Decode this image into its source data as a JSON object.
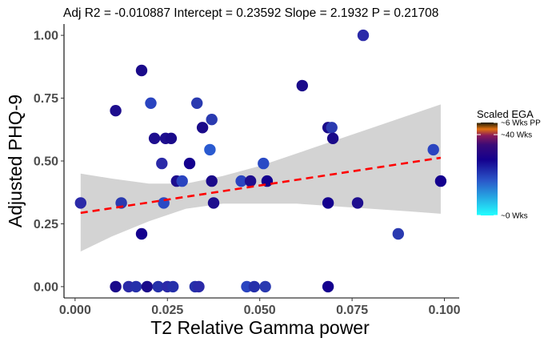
{
  "chart_data": {
    "type": "scatter",
    "title": "Adj R2 =  -0.010887 Intercept = 0.23592  Slope = 2.1932  P = 0.21708",
    "xlabel": "T2 Relative Gamma power",
    "ylabel": "Adjusted PHQ-9",
    "xlim": [
      -0.003,
      0.104
    ],
    "ylim": [
      -0.045,
      1.045
    ],
    "x_ticks": [
      0.0,
      0.025,
      0.05,
      0.075,
      0.1
    ],
    "x_tick_labels": [
      "0.000",
      "0.025",
      "0.050",
      "0.075",
      "0.100"
    ],
    "y_ticks": [
      0.0,
      0.25,
      0.5,
      0.75,
      1.0
    ],
    "y_tick_labels": [
      "0.00",
      "0.25",
      "0.50",
      "0.75",
      "1.00"
    ],
    "grid": false,
    "legend": {
      "title": "Scaled EGA",
      "position": "right",
      "labels": [
        "~6 Wks PP",
        "~40 Wks",
        "~0 Wks"
      ],
      "label_values": [
        1.0,
        0.87,
        0.0
      ],
      "gradient": [
        {
          "offset": 0.0,
          "color": "#1a1a00"
        },
        {
          "offset": 0.07,
          "color": "#e07010"
        },
        {
          "offset": 0.14,
          "color": "#8b1a5a"
        },
        {
          "offset": 0.24,
          "color": "#3a0a78"
        },
        {
          "offset": 0.4,
          "color": "#14008e"
        },
        {
          "offset": 0.62,
          "color": "#2a55c8"
        },
        {
          "offset": 1.0,
          "color": "#22ffff"
        }
      ]
    },
    "regression": {
      "intercept": 0.29,
      "slope": 2.25,
      "x_range": [
        0.0015,
        0.099
      ],
      "line_color": "#ff0000",
      "ci_band": [
        {
          "x": 0.0015,
          "lower": 0.14,
          "upper": 0.45
        },
        {
          "x": 0.01,
          "lower": 0.2,
          "upper": 0.43
        },
        {
          "x": 0.02,
          "lower": 0.26,
          "upper": 0.41
        },
        {
          "x": 0.03,
          "lower": 0.31,
          "upper": 0.41
        },
        {
          "x": 0.04,
          "lower": 0.33,
          "upper": 0.44
        },
        {
          "x": 0.05,
          "lower": 0.33,
          "upper": 0.48
        },
        {
          "x": 0.06,
          "lower": 0.33,
          "upper": 0.53
        },
        {
          "x": 0.07,
          "lower": 0.32,
          "upper": 0.58
        },
        {
          "x": 0.08,
          "lower": 0.31,
          "upper": 0.63
        },
        {
          "x": 0.09,
          "lower": 0.3,
          "upper": 0.68
        },
        {
          "x": 0.099,
          "lower": 0.29,
          "upper": 0.725
        }
      ]
    },
    "points": [
      {
        "x": 0.0015,
        "y": 0.333,
        "color": "#2b2aa8"
      },
      {
        "x": 0.011,
        "y": 0.0,
        "color": "#1a0a8a"
      },
      {
        "x": 0.011,
        "y": 0.7,
        "color": "#1e0e8e"
      },
      {
        "x": 0.0125,
        "y": 0.333,
        "color": "#2a3ab0"
      },
      {
        "x": 0.0145,
        "y": 0.0,
        "color": "#2b2aa8"
      },
      {
        "x": 0.0165,
        "y": 0.0,
        "color": "#2530aa"
      },
      {
        "x": 0.018,
        "y": 0.86,
        "color": "#1a0a8a"
      },
      {
        "x": 0.018,
        "y": 0.21,
        "color": "#14008e"
      },
      {
        "x": 0.0195,
        "y": 0.0,
        "color": "#1a0a8a"
      },
      {
        "x": 0.0205,
        "y": 0.73,
        "color": "#2a44c0"
      },
      {
        "x": 0.0215,
        "y": 0.59,
        "color": "#1e0e8e"
      },
      {
        "x": 0.0225,
        "y": 0.0,
        "color": "#2530aa"
      },
      {
        "x": 0.0235,
        "y": 0.49,
        "color": "#2b2aa8"
      },
      {
        "x": 0.024,
        "y": 0.333,
        "color": "#2a4ac5"
      },
      {
        "x": 0.0245,
        "y": 0.59,
        "color": "#1e0e8e"
      },
      {
        "x": 0.025,
        "y": 0.0,
        "color": "#2b2aa8"
      },
      {
        "x": 0.026,
        "y": 0.59,
        "color": "#1a0a8a"
      },
      {
        "x": 0.0265,
        "y": 0.0,
        "color": "#2530aa"
      },
      {
        "x": 0.0275,
        "y": 0.42,
        "color": "#1e0e8e"
      },
      {
        "x": 0.029,
        "y": 0.42,
        "color": "#2a44c0"
      },
      {
        "x": 0.031,
        "y": 0.49,
        "color": "#14008e"
      },
      {
        "x": 0.0325,
        "y": 0.0,
        "color": "#2530aa"
      },
      {
        "x": 0.033,
        "y": 0.73,
        "color": "#2a3ab0"
      },
      {
        "x": 0.0335,
        "y": 0.0,
        "color": "#2b2aa8"
      },
      {
        "x": 0.0345,
        "y": 0.633,
        "color": "#1a0a8a"
      },
      {
        "x": 0.0365,
        "y": 0.545,
        "color": "#2a5ad0"
      },
      {
        "x": 0.037,
        "y": 0.665,
        "color": "#2a3ab0"
      },
      {
        "x": 0.037,
        "y": 0.42,
        "color": "#1a0a8a"
      },
      {
        "x": 0.0375,
        "y": 0.333,
        "color": "#1e0e8e"
      },
      {
        "x": 0.045,
        "y": 0.42,
        "color": "#2a44c0"
      },
      {
        "x": 0.0465,
        "y": 0.0,
        "color": "#2a44c0"
      },
      {
        "x": 0.0475,
        "y": 0.42,
        "color": "#1e0e8e"
      },
      {
        "x": 0.0485,
        "y": 0.0,
        "color": "#2530aa"
      },
      {
        "x": 0.051,
        "y": 0.49,
        "color": "#2a4ac5"
      },
      {
        "x": 0.0515,
        "y": 0.0,
        "color": "#2a3ab0"
      },
      {
        "x": 0.052,
        "y": 0.42,
        "color": "#14008e"
      },
      {
        "x": 0.0615,
        "y": 0.8,
        "color": "#1a0a8a"
      },
      {
        "x": 0.0685,
        "y": 0.633,
        "color": "#1a0a8a"
      },
      {
        "x": 0.0685,
        "y": 0.333,
        "color": "#14008e"
      },
      {
        "x": 0.0685,
        "y": 0.0,
        "color": "#14008e"
      },
      {
        "x": 0.0695,
        "y": 0.633,
        "color": "#2a3ab0"
      },
      {
        "x": 0.0698,
        "y": 0.59,
        "color": "#1a0a8a"
      },
      {
        "x": 0.0765,
        "y": 0.333,
        "color": "#1e0e8e"
      },
      {
        "x": 0.078,
        "y": 1.0,
        "color": "#2b2aa8"
      },
      {
        "x": 0.0875,
        "y": 0.21,
        "color": "#2a3ab0"
      },
      {
        "x": 0.097,
        "y": 0.545,
        "color": "#2a44c0"
      },
      {
        "x": 0.099,
        "y": 0.42,
        "color": "#14008e"
      }
    ]
  }
}
